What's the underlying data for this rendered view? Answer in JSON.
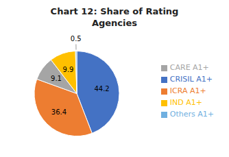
{
  "chart_data": {
    "type": "pie",
    "title": "Chart 12: Share of Rating\nAgencies",
    "categories": [
      "CRISIL A1+",
      "ICRA A1+",
      "CARE A1+",
      "IND A1+",
      "Others A1+"
    ],
    "values": [
      44.2,
      36.4,
      9.1,
      9.9,
      0.5
    ],
    "colors": [
      "#4472C4",
      "#ED7D31",
      "#A5A5A5",
      "#FFC000",
      "#70B0E0"
    ],
    "data_labels": true,
    "legend": "right"
  }
}
